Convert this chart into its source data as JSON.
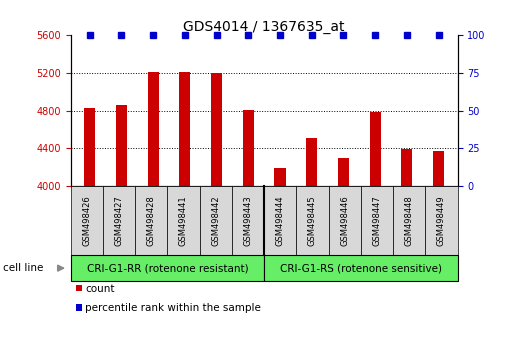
{
  "title": "GDS4014 / 1367635_at",
  "categories": [
    "GSM498426",
    "GSM498427",
    "GSM498428",
    "GSM498441",
    "GSM498442",
    "GSM498443",
    "GSM498444",
    "GSM498445",
    "GSM498446",
    "GSM498447",
    "GSM498448",
    "GSM498449"
  ],
  "bar_values": [
    4830,
    4855,
    5210,
    5210,
    5205,
    4810,
    4195,
    4510,
    4300,
    4790,
    4390,
    4375
  ],
  "bar_color": "#cc0000",
  "percentile_color": "#0000cc",
  "ylim_left": [
    4000,
    5600
  ],
  "ylim_right": [
    0,
    100
  ],
  "yticks_left": [
    4000,
    4400,
    4800,
    5200,
    5600
  ],
  "yticks_right": [
    0,
    25,
    50,
    75,
    100
  ],
  "grid_values": [
    4400,
    4800,
    5200
  ],
  "group1_label": "CRI-G1-RR (rotenone resistant)",
  "group2_label": "CRI-G1-RS (rotenone sensitive)",
  "n_group1": 6,
  "n_group2": 6,
  "cell_line_label": "cell line",
  "legend_count_label": "count",
  "legend_percentile_label": "percentile rank within the sample",
  "background_color": "#ffffff",
  "plot_bg_color": "#ffffff",
  "xtick_bg_color": "#d8d8d8",
  "group_bg_color": "#66ee66",
  "title_fontsize": 10,
  "tick_fontsize": 7
}
